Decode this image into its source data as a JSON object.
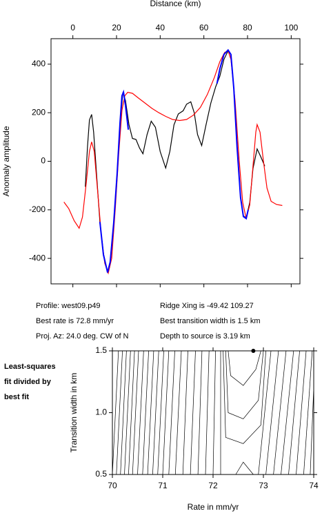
{
  "chart_data": [
    {
      "type": "line",
      "xlabel": "Distance (km)",
      "ylabel": "Anomaly amplitude",
      "xlim": [
        -10,
        104
      ],
      "xticks": [
        0,
        20,
        40,
        60,
        80,
        100
      ],
      "ylim": [
        -505,
        505
      ],
      "yticks": [
        -400,
        -200,
        0,
        200,
        400
      ],
      "series": [
        {
          "color": "#000000",
          "x": [
            5.7,
            6.7,
            7.6,
            8.6,
            9.5,
            10.8,
            12.4,
            14,
            15.9,
            17.1,
            18.7,
            20.3,
            21.6,
            22.9,
            24.1,
            25.7,
            27.3,
            28.9,
            30.5,
            32.1,
            34,
            35.9,
            37.8,
            40,
            42.5,
            44.4,
            46.3,
            48.3,
            50.5,
            52.1,
            54,
            55.6,
            57.1,
            59,
            61,
            63.2,
            65.4,
            67.3,
            69.2,
            71.1,
            72.4,
            73.7,
            75.2,
            76.8,
            78.1,
            79.4,
            81,
            82.5,
            84.4,
            86,
            87.9
          ],
          "values": [
            -105,
            60,
            170,
            193,
            120,
            -48,
            -250,
            -380,
            -455,
            -420,
            -260,
            -60,
            150,
            284,
            250,
            150,
            94,
            90,
            55,
            31,
            110,
            165,
            140,
            40,
            -28,
            40,
            150,
            195,
            208,
            235,
            245,
            200,
            110,
            65,
            150,
            240,
            307,
            350,
            420,
            455,
            440,
            300,
            60,
            -150,
            -225,
            -233,
            -170,
            -30,
            51,
            20,
            -20
          ]
        },
        {
          "color": "#ff0000",
          "x": [
            -4.1,
            -1.9,
            0.6,
            2.9,
            4.4,
            6,
            7.6,
            8.6,
            9.8,
            11.4,
            13,
            14.6,
            16.2,
            17.8,
            19.4,
            21,
            22.5,
            23.8,
            25.1,
            27.3,
            29.8,
            33,
            36.2,
            39.4,
            42.5,
            45.7,
            48.9,
            52.1,
            55.2,
            58.4,
            61.6,
            64.8,
            67.3,
            69.5,
            71.1,
            72.4,
            74.3,
            76.2,
            77.8,
            79.4,
            81,
            82.5,
            83.8,
            84.4,
            85.7,
            87.3,
            88.9,
            90.8,
            93.3,
            95.9
          ],
          "values": [
            -168,
            -195,
            -245,
            -276,
            -230,
            -100,
            40,
            80,
            40,
            -130,
            -300,
            -420,
            -461,
            -400,
            -200,
            30,
            210,
            270,
            284,
            280,
            262,
            240,
            218,
            200,
            185,
            172,
            168,
            172,
            190,
            222,
            275,
            345,
            410,
            448,
            455,
            420,
            250,
            0,
            -170,
            -236,
            -180,
            -20,
            120,
            151,
            120,
            0,
            -110,
            -165,
            -178,
            -182
          ]
        },
        {
          "color": "#0000ff",
          "x": [
            12.4,
            14,
            15.9,
            17.1,
            18.7,
            20.3,
            21.6,
            22.5,
            23.2,
            24.1,
            25.4,
            45,
            66,
            67.3,
            69.2,
            71.1,
            72.4,
            73.7,
            75.2,
            76.8,
            78.1,
            79.4,
            80.3
          ],
          "values": [
            -250,
            -385,
            -458,
            -415,
            -255,
            -50,
            160,
            270,
            285,
            230,
            130,
            null,
            320,
            380,
            440,
            458,
            440,
            300,
            60,
            -150,
            -228,
            -236,
            -200
          ]
        }
      ],
      "annotations": [
        "Profile: west09.p49",
        "Best rate is 72.8 mm/yr",
        "Proj. Az: 24.0 deg. CW of N",
        "Ridge Xing is -49.42 109.27",
        "Best transition width is 1.5 km",
        "Depth to source is   3.19 km"
      ]
    },
    {
      "type": "contour",
      "xlabel": "Rate in mm/yr",
      "ylabel": "Transition width in km",
      "xlim": [
        70,
        74
      ],
      "xticks": [
        70,
        71,
        72,
        73,
        74
      ],
      "ylim": [
        0.5,
        1.5
      ],
      "yticks": [
        {
          "value": 0.5,
          "label": "0.5"
        },
        {
          "value": 1.0,
          "label": "1.0"
        },
        {
          "value": 1.5,
          "label": "1.5"
        }
      ],
      "lines": [
        {
          "x": [
            70.0,
            70.12
          ],
          "y": [
            0.5,
            1.5
          ]
        },
        {
          "x": [
            70.08,
            70.2
          ],
          "y": [
            0.5,
            1.5
          ]
        },
        {
          "x": [
            70.16,
            70.28
          ],
          "y": [
            0.5,
            1.5
          ]
        },
        {
          "x": [
            70.24,
            70.36
          ],
          "y": [
            0.5,
            1.5
          ]
        },
        {
          "x": [
            70.32,
            70.44
          ],
          "y": [
            0.5,
            1.5
          ]
        },
        {
          "x": [
            70.4,
            70.52
          ],
          "y": [
            0.5,
            1.5
          ]
        },
        {
          "x": [
            70.5,
            70.62
          ],
          "y": [
            0.5,
            1.5
          ]
        },
        {
          "x": [
            70.6,
            70.72
          ],
          "y": [
            0.5,
            1.5
          ]
        },
        {
          "x": [
            70.7,
            70.82
          ],
          "y": [
            0.5,
            1.5
          ]
        },
        {
          "x": [
            70.8,
            70.92
          ],
          "y": [
            0.5,
            1.5
          ]
        },
        {
          "x": [
            70.9,
            71.02
          ],
          "y": [
            0.5,
            1.5
          ]
        },
        {
          "x": [
            71.0,
            71.12
          ],
          "y": [
            0.5,
            1.5
          ]
        },
        {
          "x": [
            71.12,
            71.24
          ],
          "y": [
            0.5,
            1.5
          ]
        },
        {
          "x": [
            71.25,
            71.37
          ],
          "y": [
            0.5,
            1.5
          ]
        },
        {
          "x": [
            71.4,
            71.5
          ],
          "y": [
            0.5,
            1.5
          ]
        },
        {
          "x": [
            71.55,
            71.65
          ],
          "y": [
            0.5,
            1.5
          ]
        },
        {
          "x": [
            71.7,
            71.78
          ],
          "y": [
            0.5,
            1.5
          ]
        },
        {
          "x": [
            71.85,
            71.92
          ],
          "y": [
            0.5,
            1.5
          ]
        },
        {
          "x": [
            72.0,
            72.05
          ],
          "y": [
            0.5,
            1.5
          ]
        },
        {
          "x": [
            72.15,
            72.15
          ],
          "y": [
            0.5,
            1.5
          ]
        },
        {
          "x": [
            72.3,
            72.35,
            72.6,
            72.85,
            72.95
          ],
          "y": [
            1.5,
            1.3,
            1.22,
            1.35,
            1.5
          ]
        },
        {
          "x": [
            72.25,
            72.3,
            72.6,
            72.9,
            73.0
          ],
          "y": [
            1.5,
            1.0,
            0.95,
            1.1,
            1.5
          ]
        },
        {
          "x": [
            72.2,
            72.25,
            72.6,
            72.95,
            73.05
          ],
          "y": [
            1.5,
            0.8,
            0.75,
            0.9,
            1.5
          ]
        },
        {
          "x": [
            72.45,
            72.6,
            72.8
          ],
          "y": [
            0.5,
            0.6,
            0.5
          ]
        },
        {
          "x": [
            72.9,
            73.15
          ],
          "y": [
            0.5,
            1.5
          ]
        },
        {
          "x": [
            73.05,
            73.3
          ],
          "y": [
            0.5,
            1.5
          ]
        },
        {
          "x": [
            73.2,
            73.45
          ],
          "y": [
            0.5,
            1.5
          ]
        },
        {
          "x": [
            73.35,
            73.6
          ],
          "y": [
            0.5,
            1.5
          ]
        },
        {
          "x": [
            73.5,
            73.72
          ],
          "y": [
            0.5,
            1.5
          ]
        },
        {
          "x": [
            73.65,
            73.85
          ],
          "y": [
            0.5,
            1.5
          ]
        },
        {
          "x": [
            73.8,
            73.97
          ],
          "y": [
            0.5,
            1.5
          ]
        },
        {
          "x": [
            73.93,
            74.0
          ],
          "y": [
            0.5,
            1.2
          ]
        }
      ],
      "best": {
        "x": 72.8,
        "y": 1.5
      },
      "annotations": [
        "Least-squares",
        "fit divided by",
        "best fit"
      ]
    }
  ]
}
